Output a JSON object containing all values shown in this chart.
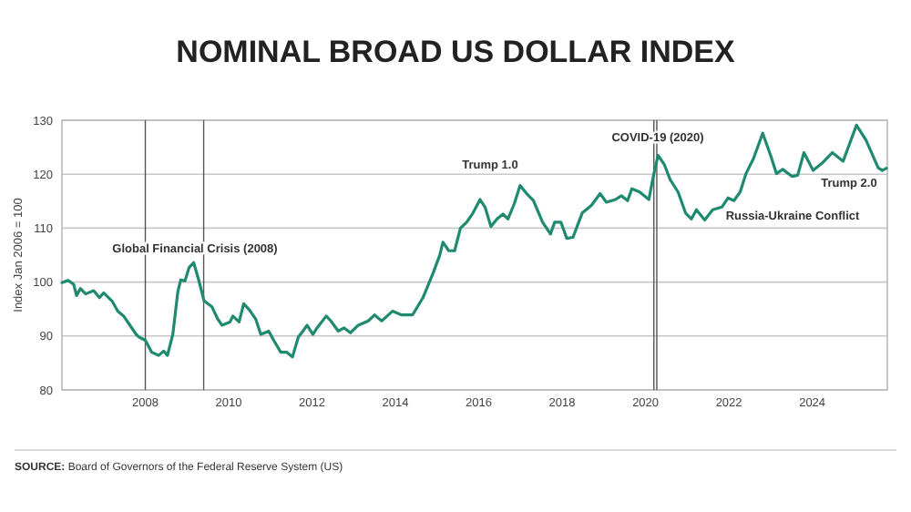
{
  "chart_data": {
    "type": "line",
    "title": "NOMINAL BROAD US DOLLAR INDEX",
    "ylabel": "Index Jan 2006 = 100",
    "xlim": [
      2006,
      2025.8
    ],
    "xticks": [
      2008,
      2010,
      2012,
      2014,
      2016,
      2018,
      2020,
      2022,
      2024
    ],
    "ylim": [
      80,
      130
    ],
    "yticks": [
      80,
      90,
      100,
      110,
      120,
      130
    ],
    "grid": "y",
    "line_style": "solid",
    "marker": "none",
    "series": [
      {
        "color": "#1f8a70",
        "x": [
          2006.0,
          2006.15,
          2006.28,
          2006.35,
          2006.44,
          2006.57,
          2006.76,
          2006.9,
          2007.0,
          2007.2,
          2007.34,
          2007.48,
          2007.56,
          2007.78,
          2007.85,
          2008.0,
          2008.15,
          2008.32,
          2008.44,
          2008.53,
          2008.66,
          2008.78,
          2008.85,
          2008.95,
          2009.05,
          2009.16,
          2009.28,
          2009.41,
          2009.6,
          2009.74,
          2009.84,
          2010.03,
          2010.1,
          2010.25,
          2010.36,
          2010.5,
          2010.65,
          2010.77,
          2010.96,
          2011.08,
          2011.25,
          2011.39,
          2011.53,
          2011.67,
          2011.78,
          2011.88,
          2012.02,
          2012.12,
          2012.34,
          2012.45,
          2012.63,
          2012.77,
          2012.92,
          2013.11,
          2013.35,
          2013.5,
          2013.67,
          2013.93,
          2014.15,
          2014.41,
          2014.66,
          2014.9,
          2015.06,
          2015.14,
          2015.28,
          2015.42,
          2015.56,
          2015.71,
          2015.86,
          2016.03,
          2016.15,
          2016.29,
          2016.44,
          2016.58,
          2016.7,
          2016.85,
          2016.99,
          2017.17,
          2017.31,
          2017.53,
          2017.72,
          2017.82,
          2017.97,
          2018.11,
          2018.26,
          2018.48,
          2018.7,
          2018.91,
          2019.06,
          2019.28,
          2019.42,
          2019.57,
          2019.67,
          2019.86,
          2020.08,
          2020.2,
          2020.3,
          2020.45,
          2020.59,
          2020.78,
          2020.96,
          2021.1,
          2021.22,
          2021.42,
          2021.61,
          2021.83,
          2021.98,
          2022.12,
          2022.27,
          2022.41,
          2022.59,
          2022.81,
          2023.0,
          2023.14,
          2023.29,
          2023.51,
          2023.65,
          2023.8,
          2024.02,
          2024.23,
          2024.48,
          2024.74,
          2025.06,
          2025.29,
          2025.58,
          2025.68,
          2025.78
        ],
        "values": [
          99.9,
          100.3,
          99.6,
          97.5,
          98.8,
          97.8,
          98.4,
          97.1,
          98.0,
          96.5,
          94.6,
          93.7,
          92.8,
          90.3,
          89.8,
          89.2,
          87.0,
          86.4,
          87.2,
          86.4,
          90.3,
          98.2,
          100.4,
          100.2,
          102.7,
          103.6,
          100.4,
          96.5,
          95.4,
          93.1,
          92.0,
          92.6,
          93.7,
          92.6,
          96.0,
          94.8,
          93.1,
          90.3,
          90.9,
          89.2,
          87.0,
          87.0,
          86.1,
          89.8,
          90.9,
          92.0,
          90.3,
          91.5,
          93.7,
          92.8,
          90.9,
          91.5,
          90.6,
          92.0,
          92.8,
          93.9,
          92.8,
          94.6,
          93.9,
          93.9,
          97.1,
          101.6,
          104.9,
          107.4,
          105.8,
          105.8,
          110.0,
          111.1,
          112.8,
          115.3,
          113.9,
          110.3,
          111.7,
          112.6,
          111.7,
          114.5,
          117.9,
          116.2,
          115.1,
          111.1,
          108.9,
          111.1,
          111.1,
          108.1,
          108.3,
          112.8,
          114.2,
          116.4,
          114.8,
          115.3,
          116.0,
          115.1,
          117.3,
          116.7,
          115.3,
          120.1,
          123.5,
          121.8,
          119.0,
          116.7,
          112.8,
          111.7,
          113.4,
          111.5,
          113.4,
          113.9,
          115.6,
          115.1,
          116.7,
          120.1,
          122.9,
          127.6,
          123.5,
          120.1,
          120.9,
          119.6,
          119.8,
          124.0,
          120.7,
          122.0,
          124.0,
          122.4,
          129.1,
          126.3,
          121.2,
          120.7,
          121.1
        ]
      }
    ],
    "ref_lines": [
      {
        "axis": "x",
        "value": 2008.0,
        "color": "#555555"
      },
      {
        "axis": "x",
        "value": 2009.4,
        "color": "#555555"
      },
      {
        "axis": "x",
        "value": 2020.2,
        "color": "#555555"
      },
      {
        "axis": "x",
        "value": 2020.27,
        "color": "#555555"
      }
    ],
    "annotations": [
      "Global Financial Crisis (2008)",
      "Trump 1.0",
      "COVID-19 (2020)",
      "Russia-Ukraine Conflict",
      "Trump 2.0",
      "SOURCE: Board of Governors of the Federal Reserve System (US)"
    ]
  }
}
